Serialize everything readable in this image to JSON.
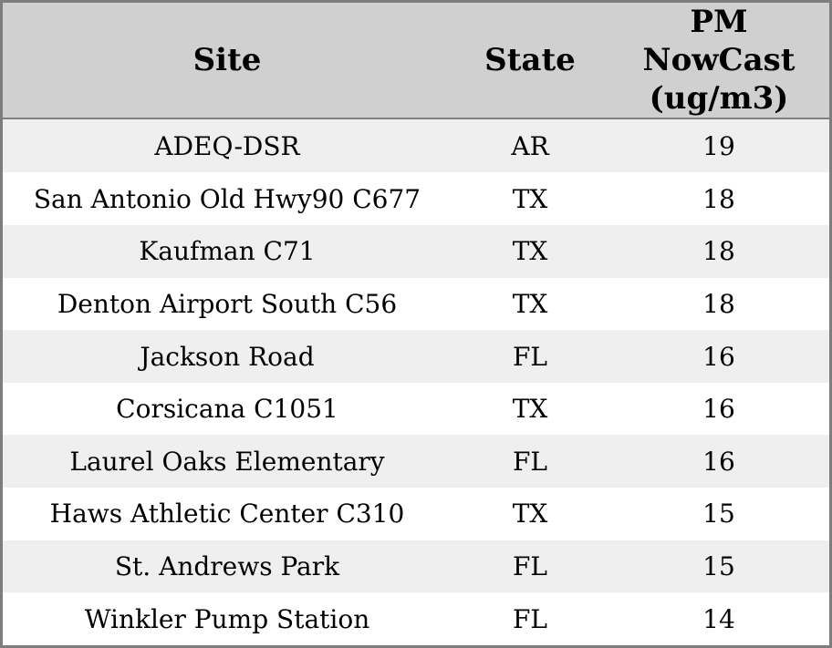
{
  "colors": {
    "header_bg": "#d0d0d0",
    "stripe": "#efefef",
    "border": "#7d7d7d",
    "header_rule": "#808080",
    "text": "#000000"
  },
  "table": {
    "columns": [
      {
        "label": "Site"
      },
      {
        "label": "State"
      },
      {
        "label": "PM NowCast (ug/m3)",
        "lines": [
          "PM",
          "NowCast",
          "(ug/m3)"
        ]
      }
    ],
    "rows": [
      {
        "site": "ADEQ-DSR",
        "state": "AR",
        "pm": "19"
      },
      {
        "site": "San Antonio Old Hwy90 C677",
        "state": "TX",
        "pm": "18"
      },
      {
        "site": "Kaufman C71",
        "state": "TX",
        "pm": "18"
      },
      {
        "site": "Denton Airport South C56",
        "state": "TX",
        "pm": "18"
      },
      {
        "site": "Jackson Road",
        "state": "FL",
        "pm": "16"
      },
      {
        "site": "Corsicana C1051",
        "state": "TX",
        "pm": "16"
      },
      {
        "site": "Laurel Oaks Elementary",
        "state": "FL",
        "pm": "16"
      },
      {
        "site": "Haws Athletic Center C310",
        "state": "TX",
        "pm": "15"
      },
      {
        "site": "St. Andrews Park",
        "state": "FL",
        "pm": "15"
      },
      {
        "site": "Winkler Pump Station",
        "state": "FL",
        "pm": "14"
      }
    ]
  },
  "chart_data": {
    "type": "table",
    "title": "",
    "columns": [
      "Site",
      "State",
      "PM NowCast (ug/m3)"
    ],
    "rows": [
      [
        "ADEQ-DSR",
        "AR",
        19
      ],
      [
        "San Antonio Old Hwy90 C677",
        "TX",
        18
      ],
      [
        "Kaufman C71",
        "TX",
        18
      ],
      [
        "Denton Airport South C56",
        "TX",
        18
      ],
      [
        "Jackson Road",
        "FL",
        16
      ],
      [
        "Corsicana C1051",
        "TX",
        16
      ],
      [
        "Laurel Oaks Elementary",
        "FL",
        16
      ],
      [
        "Haws Athletic Center C310",
        "TX",
        15
      ],
      [
        "St. Andrews Park",
        "FL",
        15
      ],
      [
        "Winkler Pump Station",
        "FL",
        14
      ]
    ]
  }
}
